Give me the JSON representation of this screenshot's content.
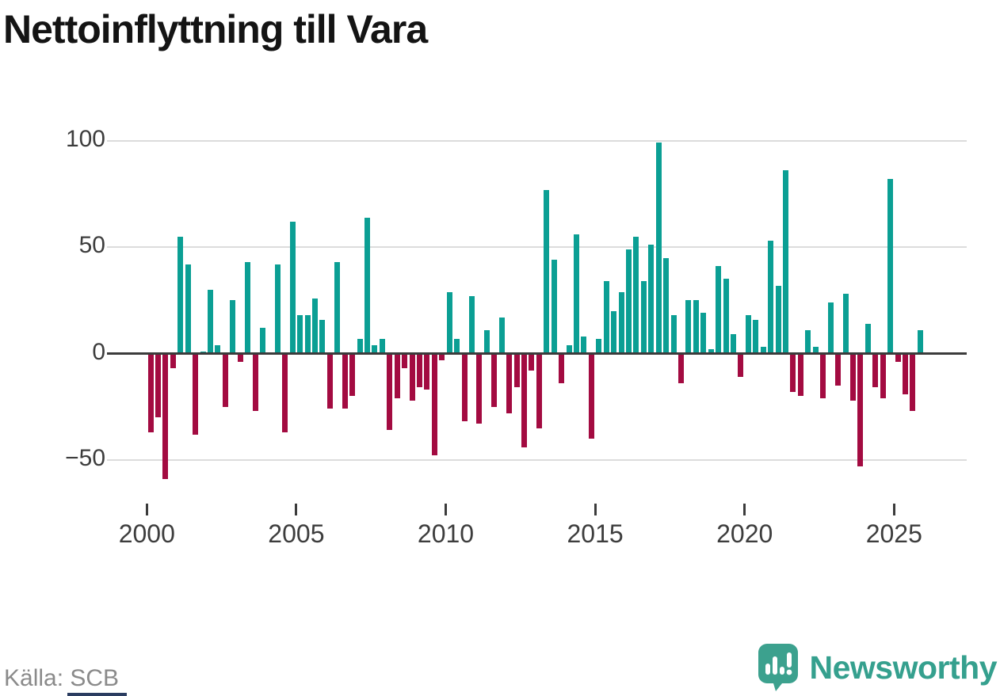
{
  "title": "Nettoinflyttning till Vara",
  "source": "Källa: SCB",
  "branding": {
    "name": "Newsworthy"
  },
  "colors": {
    "positive": "#0b9f94",
    "negative": "#a30b41",
    "axis": "#3b3b3b",
    "grid": "#dcdcdc",
    "brand_teal": "#3ca18e",
    "accent_strip": "#2a3c60",
    "title_text": "#141414",
    "tick_text": "#3d3d3d",
    "source_text": "#8a8a8a"
  },
  "chart_data": {
    "type": "bar",
    "title": "Nettoinflyttning till Vara",
    "frequency": "quarterly",
    "x_start": "2000Q1",
    "x_end": "2025Q4",
    "x_tick_labels": [
      "2000",
      "2005",
      "2010",
      "2015",
      "2020",
      "2025"
    ],
    "x_tick_years": [
      2000,
      2005,
      2010,
      2015,
      2020,
      2025
    ],
    "y_tick_labels": [
      "100",
      "50",
      "0",
      "−50"
    ],
    "y_ticks": [
      100,
      50,
      0,
      -50
    ],
    "ylim": [
      -62,
      106
    ],
    "grid": "horizontal",
    "legend": "none",
    "positive_color": "#0b9f94",
    "negative_color": "#a30b41",
    "series": [
      {
        "name": "Nettoinflyttning",
        "values": [
          -37,
          -30,
          -59,
          -7,
          55,
          42,
          -38,
          1,
          30,
          4,
          -25,
          25,
          -4,
          43,
          -27,
          12,
          0,
          42,
          -37,
          62,
          18,
          18,
          26,
          16,
          -26,
          43,
          -26,
          -20,
          7,
          64,
          4,
          7,
          -36,
          -21,
          -7,
          -22,
          -16,
          -17,
          -48,
          -3,
          29,
          7,
          -32,
          27,
          -33,
          11,
          -25,
          17,
          -28,
          -16,
          -44,
          -8,
          -35,
          77,
          44,
          -14,
          4,
          56,
          8,
          -40,
          7,
          34,
          20,
          29,
          49,
          55,
          34,
          51,
          99,
          45,
          18,
          -14,
          25,
          25,
          19,
          2,
          41,
          35,
          9,
          -11,
          18,
          16,
          3,
          53,
          32,
          86,
          -18,
          -20,
          11,
          3,
          -21,
          24,
          -15,
          28,
          -22,
          -53,
          14,
          -16,
          -21,
          82,
          -4,
          -19,
          -27,
          11
        ]
      }
    ]
  }
}
